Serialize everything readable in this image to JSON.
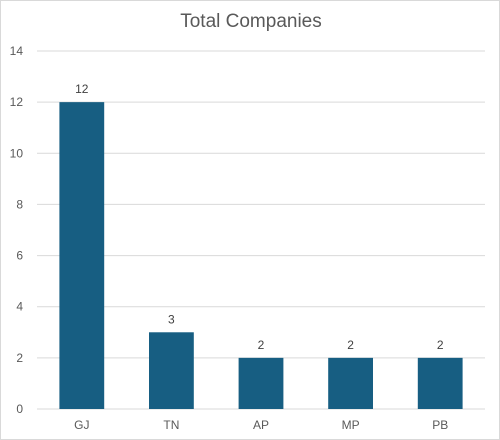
{
  "chart_data": {
    "type": "bar",
    "title": "Total Companies",
    "categories": [
      "GJ",
      "TN",
      "AP",
      "MP",
      "PB"
    ],
    "values": [
      12,
      3,
      2,
      2,
      2
    ],
    "ylim": [
      0,
      14
    ],
    "yticks": [
      0,
      2,
      4,
      6,
      8,
      10,
      12,
      14
    ],
    "grid": true,
    "legend": "none",
    "data_labels": true,
    "bar_color": "#175e82",
    "xlabel": "",
    "ylabel": ""
  }
}
